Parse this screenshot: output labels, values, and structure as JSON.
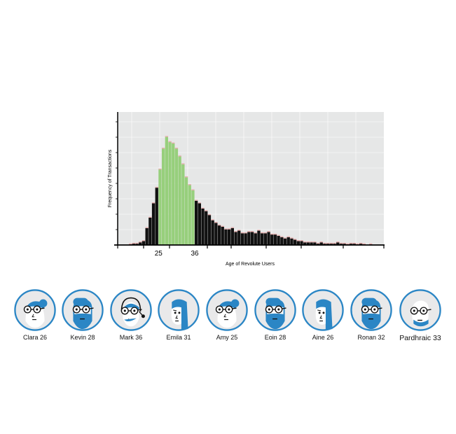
{
  "chart_data": {
    "type": "bar",
    "title": "",
    "xlabel": "Age of Revolute Users",
    "ylabel": "Frequency of Transactions",
    "x_ticks": [
      "25",
      "36"
    ],
    "highlight_range": [
      25,
      36
    ],
    "ylim": [
      0,
      100
    ],
    "grid": true,
    "legend": "none",
    "colors": {
      "normal": "#111111",
      "highlight": "#97cf7c",
      "cap": "#e4a9a9",
      "background": "#e6e7e7"
    },
    "x": [
      16,
      17,
      18,
      19,
      20,
      21,
      22,
      23,
      24,
      25,
      26,
      27,
      28,
      29,
      30,
      31,
      32,
      33,
      34,
      35,
      36,
      37,
      38,
      39,
      40,
      41,
      42,
      43,
      44,
      45,
      46,
      47,
      48,
      49,
      50,
      51,
      52,
      53,
      54,
      55,
      56,
      57,
      58,
      59,
      60,
      61,
      62,
      63,
      64,
      65,
      66,
      67,
      68,
      69,
      70,
      71,
      72,
      73,
      74,
      75,
      76,
      77,
      78,
      79,
      80,
      81,
      82,
      83,
      84,
      85,
      86,
      87,
      88,
      89
    ],
    "values": [
      0.5,
      1,
      1,
      2,
      3,
      13,
      21,
      32,
      44,
      58,
      74,
      83,
      79,
      78,
      74,
      68,
      62,
      52,
      46,
      42,
      34,
      32,
      28,
      26,
      23,
      19,
      17,
      15,
      14,
      12,
      12,
      13,
      10,
      11,
      9,
      9,
      10,
      10,
      9,
      11,
      9,
      9,
      10,
      8,
      8,
      7,
      6,
      5,
      6,
      5,
      4,
      3,
      3,
      2,
      2,
      2,
      2,
      1,
      2,
      1,
      1,
      1,
      1,
      2,
      1,
      1,
      0.5,
      1,
      1,
      0.5,
      1,
      0.5,
      0,
      0.5
    ]
  },
  "avatars": [
    {
      "label": "Clara 26",
      "icon": "woman-glasses-bun-icon"
    },
    {
      "label": "Kevin 28",
      "icon": "man-glasses-beard-icon"
    },
    {
      "label": "Mark 36",
      "icon": "man-headset-icon"
    },
    {
      "label": "Emila 31",
      "icon": "woman-long-hair-icon"
    },
    {
      "label": "Amy 25",
      "icon": "woman-glasses-bun-icon"
    },
    {
      "label": "Eoin 28",
      "icon": "man-glasses-beard-icon"
    },
    {
      "label": "Aine 26",
      "icon": "woman-long-hair-icon"
    },
    {
      "label": "Ronan 32",
      "icon": "man-glasses-beard-icon"
    },
    {
      "label": "Pardhraic 33",
      "icon": "man-glasses-icon"
    }
  ]
}
